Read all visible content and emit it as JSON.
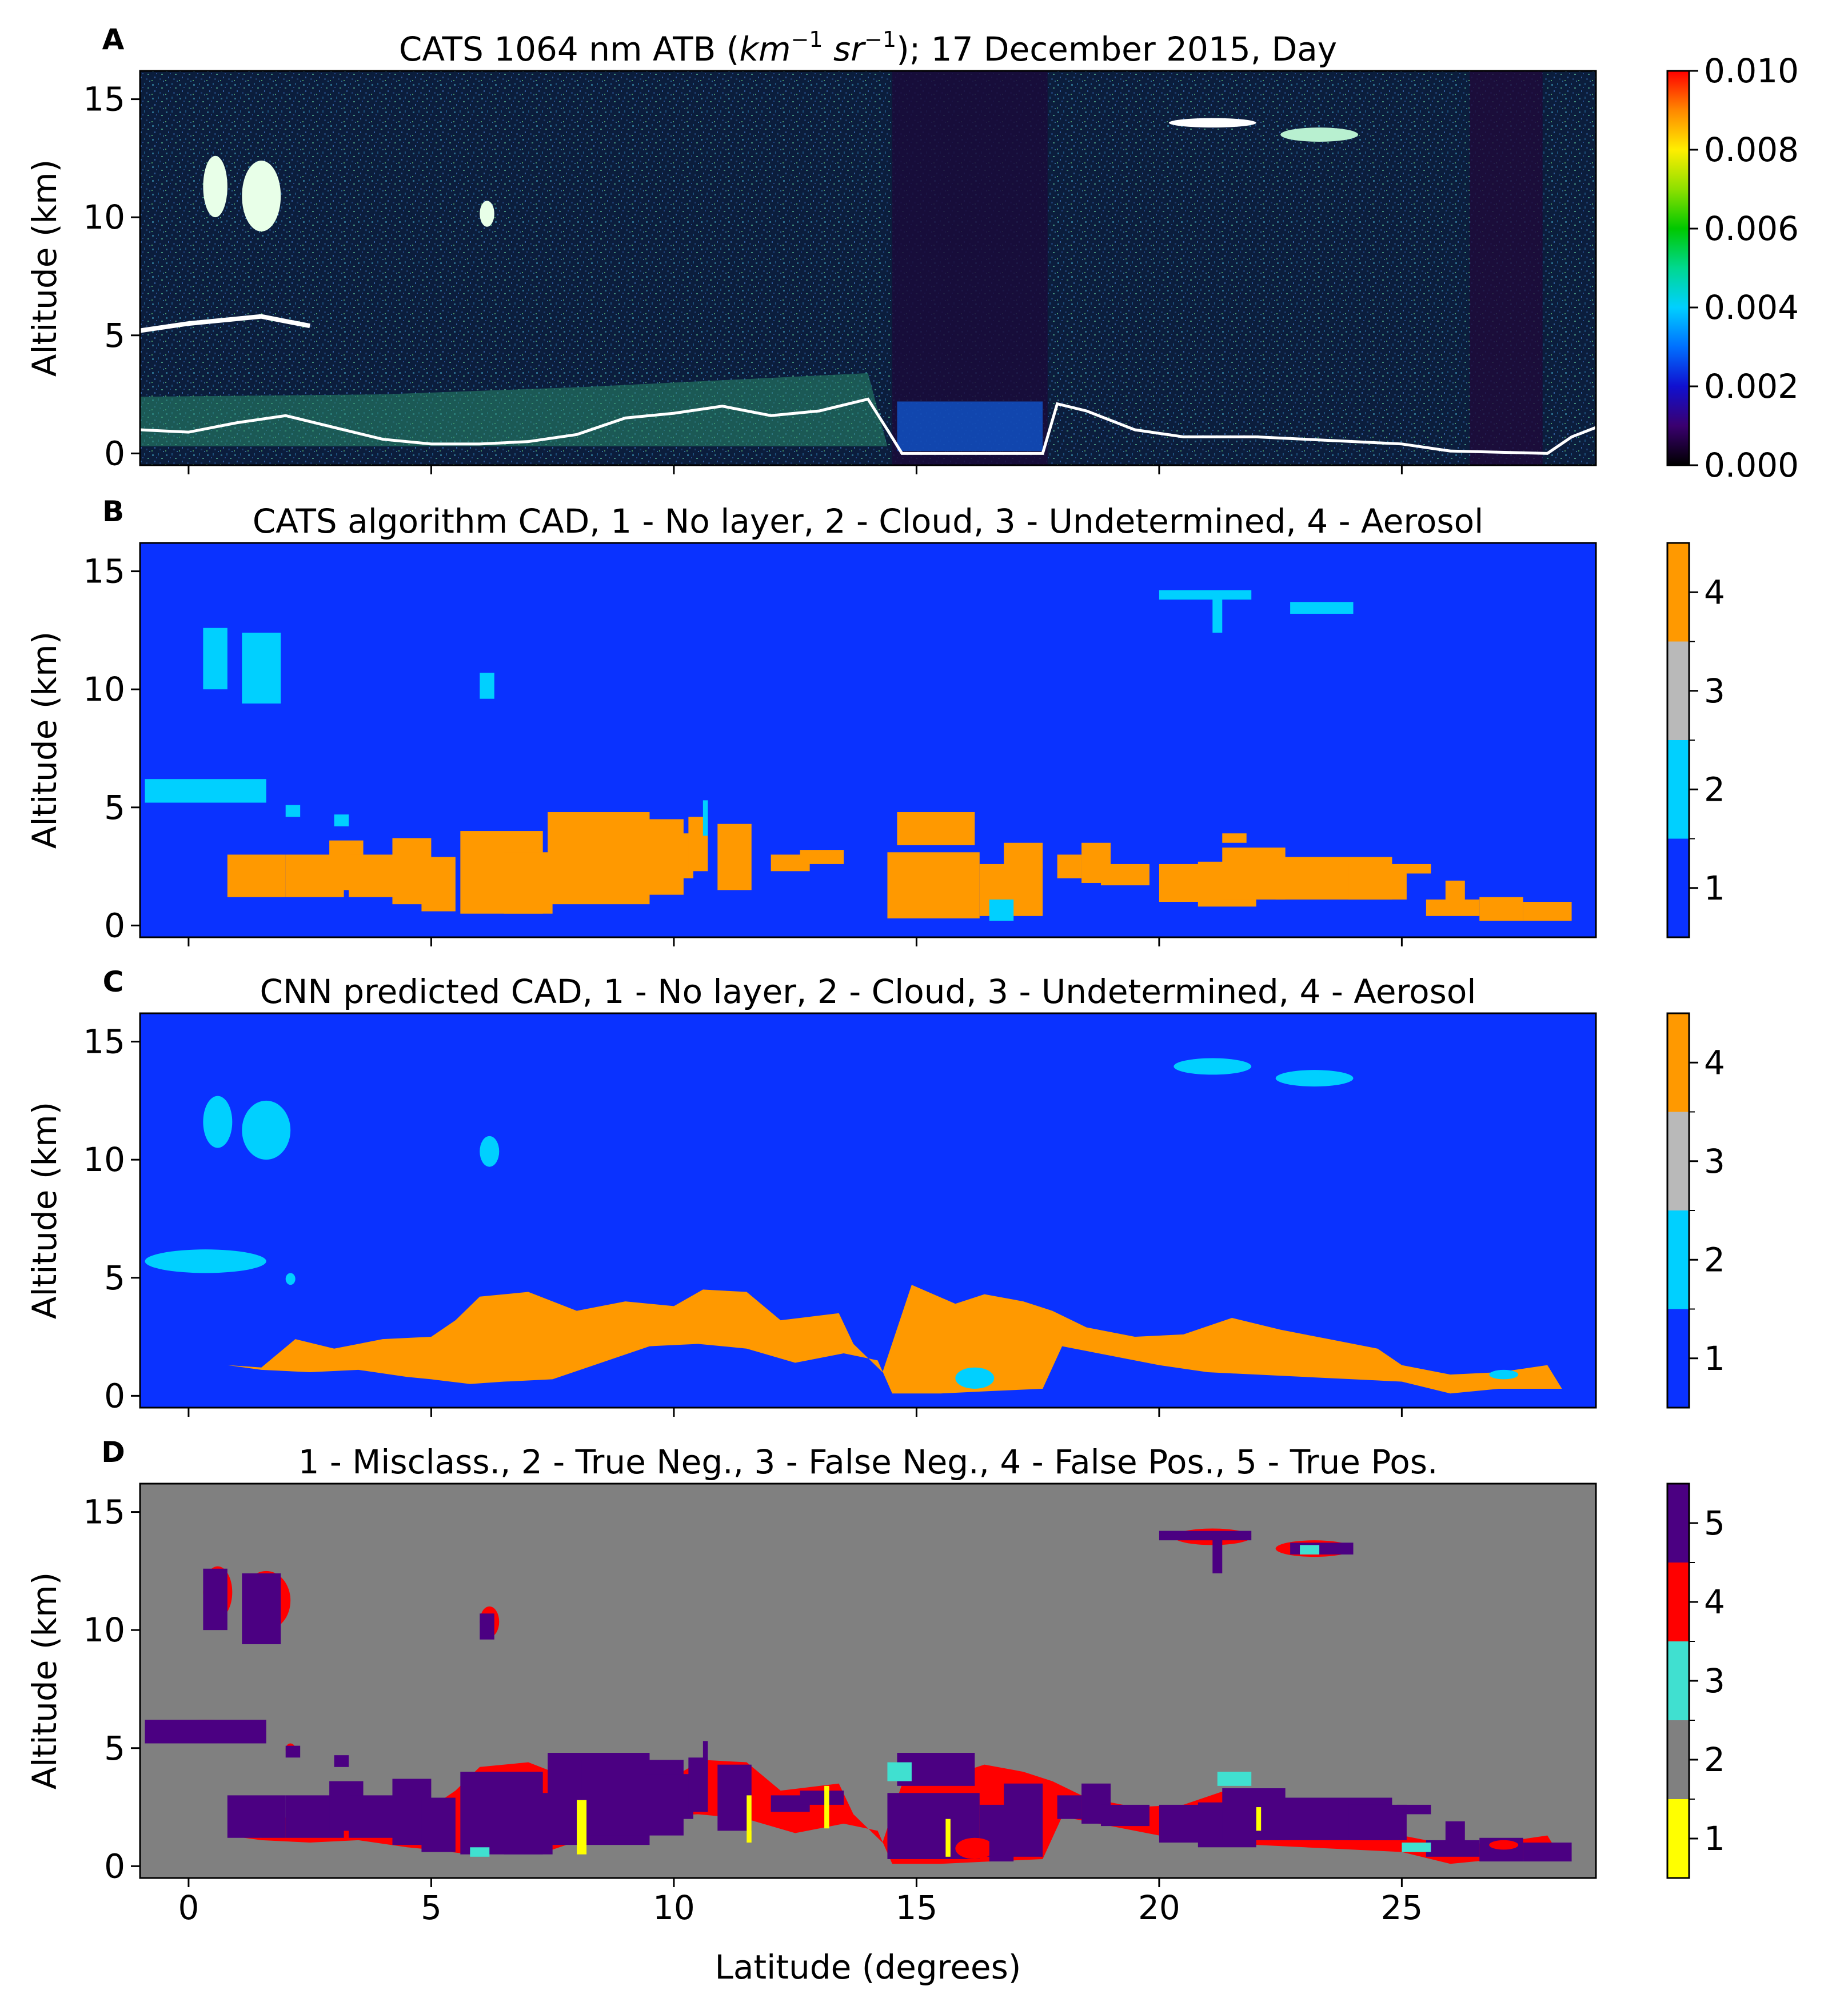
{
  "figure": {
    "xlabel": "Latitude (degrees)",
    "x_ticks": [
      "0",
      "5",
      "10",
      "15",
      "20",
      "25"
    ],
    "y_ticks": [
      "0",
      "5",
      "10",
      "15"
    ]
  },
  "chart_data": [
    {
      "type": "heatmap",
      "panel": "A",
      "title": "CATS 1064 nm ATB (km⁻¹ sr⁻¹); 17 December 2015, Day",
      "title_parts": {
        "pre": "CATS 1064 nm ATB (",
        "unit1": "km",
        "sup1": "−1",
        "unit2": " sr",
        "sup2": "−1",
        "post": "); 17 December 2015, Day"
      },
      "xlabel": "",
      "ylabel": "Altitude (km)",
      "xlim": [
        -1,
        29
      ],
      "ylim": [
        -0.5,
        16.2
      ],
      "x_ticks": [
        0,
        5,
        10,
        15,
        20,
        25
      ],
      "y_ticks": [
        0,
        5,
        10,
        15
      ],
      "colorbar": {
        "type": "continuous",
        "range": [
          0.0,
          0.01
        ],
        "tick_values": [
          0.0,
          0.002,
          0.004,
          0.006,
          0.008,
          0.01
        ],
        "tick_labels": [
          "0.000",
          "0.002",
          "0.004",
          "0.006",
          "0.008",
          "0.010"
        ]
      }
    },
    {
      "type": "heatmap",
      "panel": "B",
      "title": "CATS algorithm CAD, 1 - No layer, 2 - Cloud, 3 - Undetermined, 4 - Aerosol",
      "ylabel": "Altitude (km)",
      "xlim": [
        -1,
        29
      ],
      "ylim": [
        -0.5,
        16.2
      ],
      "categories": [
        "1",
        "2",
        "3",
        "4"
      ],
      "colors": [
        "#0a32ff",
        "#00d0ff",
        "#b9b9b9",
        "#ff9900"
      ]
    },
    {
      "type": "heatmap",
      "panel": "C",
      "title": "CNN predicted CAD, 1 - No layer, 2 - Cloud, 3 - Undetermined, 4 - Aerosol",
      "ylabel": "Altitude (km)",
      "xlim": [
        -1,
        29
      ],
      "ylim": [
        -0.5,
        16.2
      ],
      "categories": [
        "1",
        "2",
        "3",
        "4"
      ],
      "colors": [
        "#0a32ff",
        "#00d0ff",
        "#b9b9b9",
        "#ff9900"
      ]
    },
    {
      "type": "heatmap",
      "panel": "D",
      "title": "1 - Misclass., 2 - True Neg., 3 - False Neg., 4 - False Pos., 5 - True Pos.",
      "xlabel": "Latitude (degrees)",
      "ylabel": "Altitude (km)",
      "xlim": [
        -1,
        29
      ],
      "ylim": [
        -0.5,
        16.2
      ],
      "categories": [
        "1",
        "2",
        "3",
        "4",
        "5"
      ],
      "colors": [
        "#ffff00",
        "#808080",
        "#40e0d0",
        "#ff0000",
        "#4b0082"
      ]
    }
  ]
}
